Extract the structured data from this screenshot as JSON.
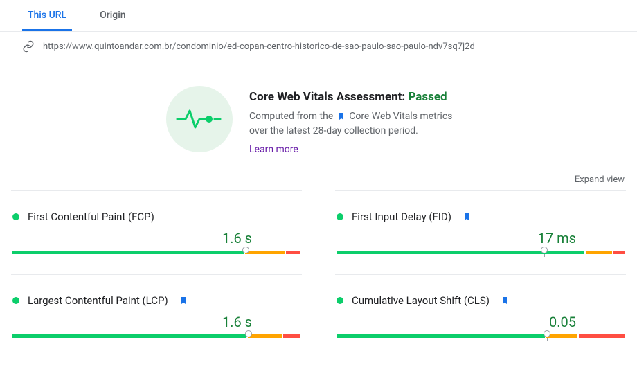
{
  "colors": {
    "green": "#0cce6b",
    "amber": "#ffa400",
    "red": "#ff4e42",
    "green_text": "#188038",
    "blue": "#1a73e8",
    "purple": "#681da8",
    "gray_text": "#5f6368"
  },
  "tabs": {
    "this_url": "This URL",
    "origin": "Origin"
  },
  "url": "https://www.quintoandar.com.br/condominio/ed-copan-centro-historico-de-sao-paulo-sao-paulo-ndv7sq7j2d",
  "assessment": {
    "title_prefix": "Core Web Vitals Assessment: ",
    "status": "Passed",
    "desc_prefix": "Computed from the ",
    "desc_mid": " Core Web Vitals metrics over the latest 28-day collection period.",
    "learn_more": "Learn more"
  },
  "expand_view": "Expand view",
  "metrics": [
    {
      "name": "First Contentful Paint (FCP)",
      "value": "1.6 s",
      "value_color": "#188038",
      "dot_color": "#0cce6b",
      "has_bookmark": false,
      "segments": [
        {
          "color": "#0cce6b",
          "pct": 81
        },
        {
          "color": "#ffa400",
          "pct": 14
        },
        {
          "color": "#ff4e42",
          "pct": 5
        }
      ],
      "marker_pct": 81
    },
    {
      "name": "First Input Delay (FID)",
      "value": "17 ms",
      "value_color": "#188038",
      "dot_color": "#0cce6b",
      "has_bookmark": true,
      "segments": [
        {
          "color": "#0cce6b",
          "pct": 87
        },
        {
          "color": "#ffa400",
          "pct": 9
        },
        {
          "color": "#ff4e42",
          "pct": 4
        }
      ],
      "marker_pct": 72
    },
    {
      "name": "Largest Contentful Paint (LCP)",
      "value": "1.6 s",
      "value_color": "#188038",
      "dot_color": "#0cce6b",
      "has_bookmark": true,
      "segments": [
        {
          "color": "#0cce6b",
          "pct": 82
        },
        {
          "color": "#ffa400",
          "pct": 12
        },
        {
          "color": "#ff4e42",
          "pct": 6
        }
      ],
      "marker_pct": 82
    },
    {
      "name": "Cumulative Layout Shift (CLS)",
      "value": "0.05",
      "value_color": "#188038",
      "dot_color": "#0cce6b",
      "has_bookmark": true,
      "segments": [
        {
          "color": "#0cce6b",
          "pct": 73
        },
        {
          "color": "#ffa400",
          "pct": 11
        },
        {
          "color": "#ff4e42",
          "pct": 16
        }
      ],
      "marker_pct": 73
    }
  ]
}
